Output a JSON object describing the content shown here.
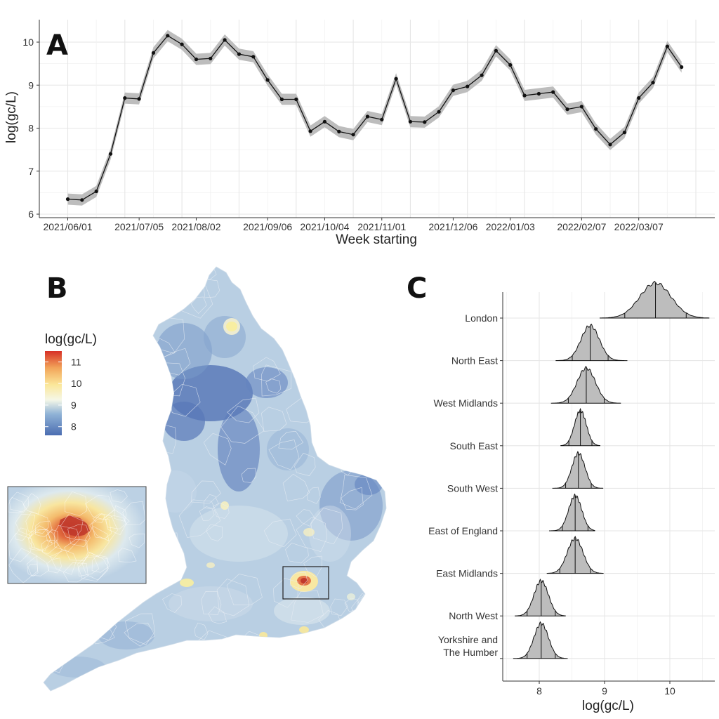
{
  "panels": {
    "a": "A",
    "b": "B",
    "c": "C"
  },
  "colors": {
    "line": "#111111",
    "ribbon": "#bdbdbd",
    "density_fill": "#bdbdbd",
    "grid": "#e6e6e6",
    "scale": [
      "#4b6db1",
      "#8fb2d6",
      "#f5f7e8",
      "#fbe79a",
      "#f2a55a",
      "#d73027"
    ]
  },
  "chart_data": [
    {
      "type": "line",
      "panel": "A",
      "xlabel": "Week starting",
      "ylabel": "log(gc/L)",
      "ylim": [
        5.95,
        10.55
      ],
      "yticks": [
        6,
        7,
        8,
        9,
        10
      ],
      "xtick_labels": [
        "2021/06/01",
        "2021/07/05",
        "2021/08/02",
        "2021/09/06",
        "2021/10/04",
        "2021/11/01",
        "2021/12/06",
        "2022/01/03",
        "2022/02/07",
        "2022/03/07"
      ],
      "xtick_week_index": [
        0,
        5,
        9,
        14,
        18,
        22,
        27,
        31,
        36,
        40
      ],
      "grid": true,
      "ribbon_halfwidth": 0.13,
      "series": [
        {
          "values": [
            6.35,
            6.33,
            6.53,
            7.4,
            8.7,
            8.68,
            9.75,
            10.15,
            9.95,
            9.6,
            9.62,
            10.05,
            9.72,
            9.66,
            9.12,
            8.67,
            8.67,
            7.93,
            8.15,
            7.92,
            7.85,
            8.27,
            8.2,
            9.15,
            8.15,
            8.14,
            8.38,
            8.88,
            8.97,
            9.23,
            9.8,
            9.47,
            8.76,
            8.8,
            8.84,
            8.44,
            8.5,
            7.98,
            7.62,
            7.9,
            8.7,
            9.06,
            9.9,
            9.42
          ]
        }
      ]
    },
    {
      "type": "heatmap",
      "panel": "B",
      "legend_title": "log(gc/L)",
      "legend_ticks": [
        8,
        9,
        10,
        11
      ],
      "legend_range": [
        7.6,
        11.5
      ]
    },
    {
      "type": "area",
      "panel": "C",
      "xlabel": "log(gc/L)",
      "xlim": [
        7.45,
        10.75
      ],
      "xticks": [
        8,
        9,
        10
      ],
      "grid": true,
      "regions": [
        {
          "name": "London",
          "mean": 9.78,
          "sd": 0.24,
          "min": 8.93,
          "max": 10.6
        },
        {
          "name": "North East",
          "mean": 8.78,
          "sd": 0.14,
          "min": 8.25,
          "max": 9.35
        },
        {
          "name": "West Midlands",
          "mean": 8.72,
          "sd": 0.14,
          "min": 8.18,
          "max": 9.25
        },
        {
          "name": "South East",
          "mean": 8.63,
          "sd": 0.09,
          "min": 8.33,
          "max": 8.93
        },
        {
          "name": "South West",
          "mean": 8.6,
          "sd": 0.1,
          "min": 8.2,
          "max": 8.98
        },
        {
          "name": "East of England",
          "mean": 8.55,
          "sd": 0.1,
          "min": 8.15,
          "max": 8.85
        },
        {
          "name": "East Midlands",
          "mean": 8.55,
          "sd": 0.12,
          "min": 8.12,
          "max": 8.98
        },
        {
          "name": "North West",
          "mean": 8.03,
          "sd": 0.11,
          "min": 7.63,
          "max": 8.4
        },
        {
          "name": "Yorkshire and The Humber",
          "label_lines": [
            "Yorkshire and",
            "The Humber"
          ],
          "mean": 8.03,
          "sd": 0.11,
          "min": 7.6,
          "max": 8.43
        }
      ]
    }
  ]
}
